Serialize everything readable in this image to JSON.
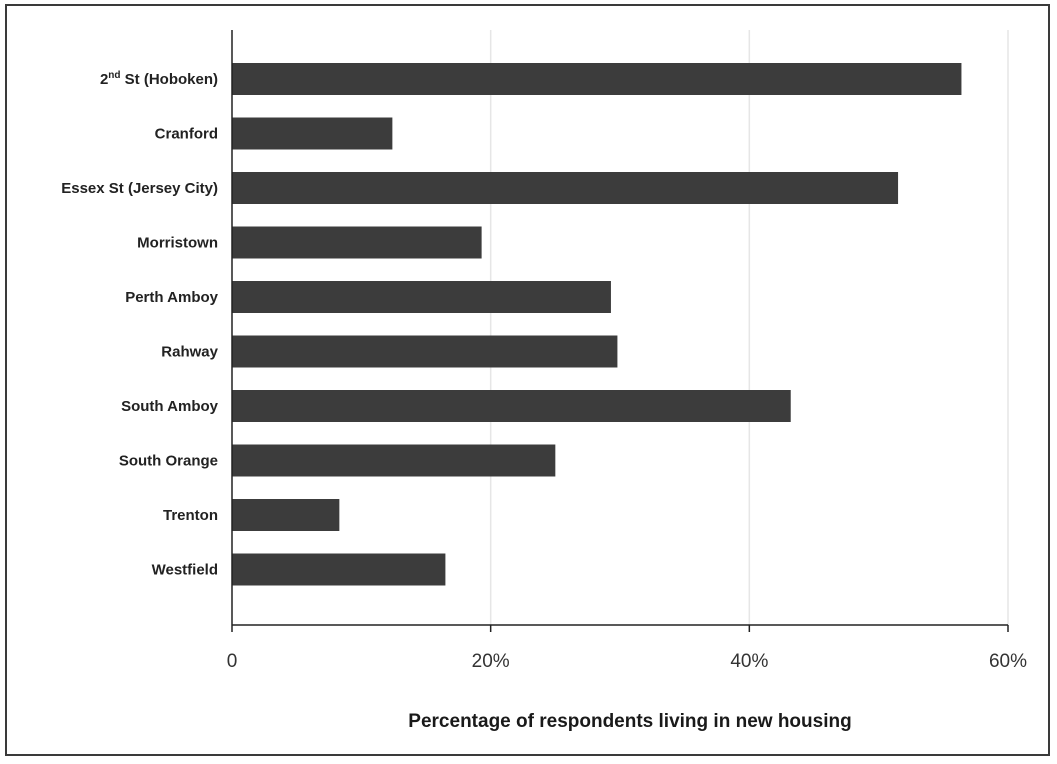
{
  "chart_data": {
    "type": "bar",
    "orientation": "horizontal",
    "categories": [
      "2nd St (Hoboken)",
      "Cranford",
      "Essex St (Jersey City)",
      "Morristown",
      "Perth Amboy",
      "Rahway",
      "South Amboy",
      "South Orange",
      "Trenton",
      "Westfield"
    ],
    "values": [
      56.4,
      12.4,
      51.5,
      19.3,
      29.3,
      29.8,
      43.2,
      25.0,
      8.3,
      16.5
    ],
    "title": "",
    "xlabel": "Percentage of respondents living in new housing",
    "ylabel": "",
    "xlim": [
      0,
      60
    ],
    "x_ticks": [
      0,
      20,
      40,
      60
    ],
    "x_tick_labels": [
      "0",
      "20%",
      "40%",
      "60%"
    ],
    "grid": "vertical",
    "bar_color": "#3c3c3c",
    "grid_color": "#e6e6e6"
  }
}
